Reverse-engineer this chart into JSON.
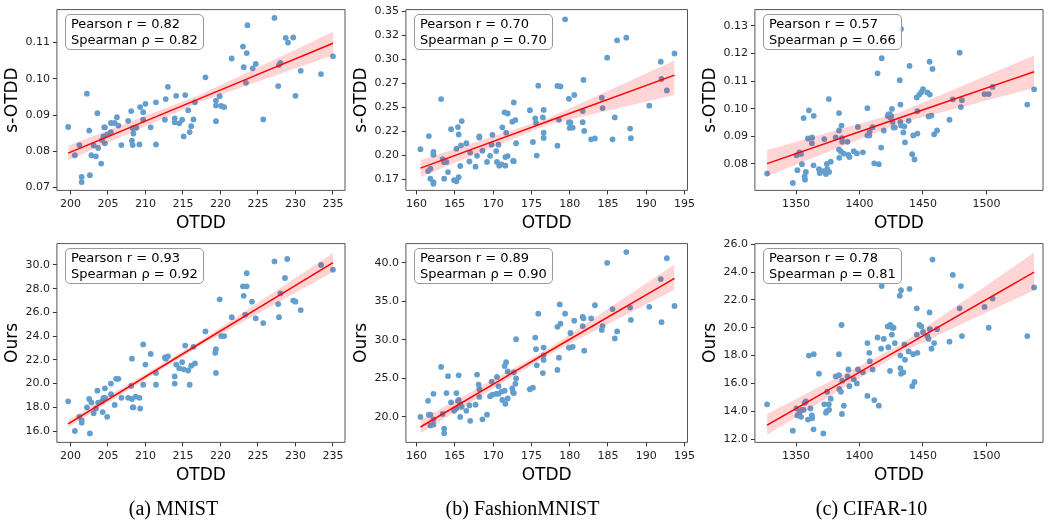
{
  "chart_data": [
    {
      "type": "scatter",
      "xlabel": "OTDD",
      "ylabel": "s-OTDD",
      "annotations": [
        "Pearson r = 0.82",
        "Spearman ρ = 0.82"
      ],
      "xlim": [
        198.2,
        236.6
      ],
      "xticks": [
        200,
        205,
        210,
        215,
        220,
        225,
        230,
        235
      ],
      "ylim": [
        0.0692,
        0.1191
      ],
      "yticks": [
        {
          "value": 0.07,
          "label": "0.07"
        },
        {
          "value": 0.08,
          "label": "0.08"
        },
        {
          "value": 0.09,
          "label": "0.09"
        },
        {
          "value": 0.1,
          "label": "0.10"
        },
        {
          "value": 0.11,
          "label": "0.11"
        }
      ],
      "series": [
        {
          "color": "#629fcf",
          "marker": "circle",
          "x": [
            199.7,
            200.6,
            201.2,
            201.5,
            201.5,
            202.2,
            202.5,
            202.6,
            202.8,
            203.1,
            203.4,
            203.6,
            203.7,
            204.1,
            204.2,
            204.4,
            204.5,
            204.6,
            204.6,
            204.9,
            205.4,
            205.4,
            205.9,
            206.2,
            206.4,
            206.8,
            207.7,
            208.1,
            208.2,
            208.3,
            208.3,
            208.4,
            208.7,
            208.8,
            209.2,
            209.3,
            209.7,
            209.7,
            210.0,
            210.7,
            211.4,
            211.4,
            212.6,
            212.7,
            213.0,
            213.9,
            213.9,
            214.1,
            214.5,
            214.9,
            215.1,
            215.3,
            215.7,
            215.9,
            216.1,
            216.4,
            216.6,
            218.0,
            219.4,
            219.4,
            219.4,
            219.9,
            220.1,
            220.5,
            221.5,
            223.0,
            223.1,
            223.4,
            223.5,
            223.6,
            224.3,
            224.7,
            225.7,
            227.2,
            227.7,
            227.8,
            228.0,
            228.7,
            229.0,
            229.7,
            230.0,
            230.7,
            233.4,
            235.0
          ],
          "values": [
            0.0867,
            0.0789,
            0.0817,
            0.0729,
            0.0715,
            0.0959,
            0.0857,
            0.0734,
            0.0789,
            0.0816,
            0.0786,
            0.0905,
            0.0809,
            0.0766,
            0.0831,
            0.0841,
            0.0866,
            0.0822,
            0.0866,
            0.0846,
            0.0878,
            0.0853,
            0.0878,
            0.0894,
            0.0871,
            0.0817,
            0.0884,
            0.0911,
            0.0829,
            0.0817,
            0.0864,
            0.0849,
            0.0865,
            0.0865,
            0.0819,
            0.0922,
            0.0887,
            0.0908,
            0.0931,
            0.0866,
            0.0819,
            0.0935,
            0.0887,
            0.0944,
            0.0978,
            0.088,
            0.0891,
            0.0953,
            0.0877,
            0.0887,
            0.0841,
            0.0955,
            0.0913,
            0.0853,
            0.0869,
            0.0888,
            0.0935,
            0.1004,
            0.094,
            0.0926,
            0.0883,
            0.0952,
            0.0925,
            0.0922,
            0.1056,
            0.1089,
            0.1032,
            0.0989,
            0.1071,
            0.1148,
            0.1029,
            0.1041,
            0.0888,
            0.1168,
            0.098,
            0.1038,
            0.1044,
            0.1113,
            0.11,
            0.1114,
            0.0953,
            0.1022,
            0.1013,
            0.1062
          ]
        },
        {
          "type": "line",
          "color": "#ff0000",
          "marker": "none",
          "line_style": "solid",
          "x": [
            199.7,
            217.3,
            235.0
          ],
          "values": [
            0.0795,
            0.0946,
            0.1098
          ],
          "lower": [
            0.0775,
            0.0936,
            0.1065
          ],
          "upper": [
            0.0815,
            0.0956,
            0.113
          ]
        }
      ]
    },
    {
      "type": "scatter",
      "xlabel": "OTDD",
      "ylabel": "s-OTDD",
      "annotations": [
        "Pearson r = 0.70",
        "Spearman ρ = 0.70"
      ],
      "xlim": [
        158.6,
        195.4
      ],
      "xticks": [
        160,
        165,
        170,
        175,
        180,
        185,
        190,
        195
      ],
      "ylim": [
        0.1637,
        0.352
      ],
      "yticks": [
        {
          "value": 0.175,
          "label": "0.17"
        },
        {
          "value": 0.2,
          "label": "0.20"
        },
        {
          "value": 0.225,
          "label": "0.22"
        },
        {
          "value": 0.25,
          "label": "0.25"
        },
        {
          "value": 0.275,
          "label": "0.27"
        },
        {
          "value": 0.3,
          "label": "0.30"
        },
        {
          "value": 0.325,
          "label": "0.32"
        },
        {
          "value": 0.35,
          "label": "0.35"
        }
      ],
      "series": [
        {
          "color": "#629fcf",
          "marker": "circle",
          "x": [
            160.5,
            161.5,
            161.6,
            161.8,
            161.8,
            162.2,
            162.2,
            162.2,
            162.2,
            163.2,
            163.4,
            163.6,
            163.6,
            163.9,
            164.1,
            164.5,
            164.9,
            165.2,
            165.2,
            165.4,
            165.5,
            165.5,
            165.7,
            165.8,
            165.9,
            166.5,
            167.0,
            166.9,
            167.7,
            167.9,
            168.2,
            168.2,
            168.6,
            169.2,
            169.6,
            169.8,
            169.9,
            170.4,
            170.5,
            170.7,
            170.8,
            171.1,
            171.2,
            171.5,
            171.6,
            171.6,
            171.7,
            171.9,
            171.9,
            172.5,
            172.6,
            172.7,
            172.7,
            172.9,
            173.0,
            174.8,
            175.2,
            175.5,
            175.6,
            175.7,
            175.9,
            176.5,
            176.6,
            176.6,
            176.6,
            178.4,
            178.4,
            178.6,
            178.8,
            179.4,
            179.9,
            179.9,
            180.1,
            180.0,
            180.4,
            180.6,
            181.7,
            181.7,
            181.8,
            181.9,
            182.8,
            183.3,
            184.2,
            184.3,
            184.9,
            185.6,
            185.9,
            186.2,
            187.4,
            187.9,
            188.0,
            190.4,
            191.9,
            192.0,
            192.7,
            193.7
          ],
          "values": [
            0.2066,
            0.1838,
            0.2203,
            0.1863,
            0.1759,
            0.2009,
            0.2038,
            0.1722,
            0.1706,
            0.2588,
            0.1963,
            0.1759,
            0.1931,
            0.1934,
            0.1828,
            0.2275,
            0.1744,
            0.1731,
            0.2072,
            0.2297,
            0.2219,
            0.1775,
            0.1891,
            0.2106,
            0.2359,
            0.2128,
            0.2031,
            0.1938,
            0.1884,
            0.1997,
            0.22,
            0.2188,
            0.205,
            0.1934,
            0.1997,
            0.2113,
            0.2216,
            0.2047,
            0.1934,
            0.2113,
            0.1894,
            0.1909,
            0.2294,
            0.245,
            0.1894,
            0.1984,
            0.2238,
            0.2438,
            0.1994,
            0.2353,
            0.1944,
            0.1941,
            0.2553,
            0.2369,
            0.2128,
            0.2472,
            0.2141,
            0.2388,
            0.2341,
            0.2,
            0.2728,
            0.2397,
            0.2238,
            0.2184,
            0.2475,
            0.2103,
            0.2725,
            0.2372,
            0.2719,
            0.3419,
            0.2591,
            0.2344,
            0.2344,
            0.2288,
            0.2291,
            0.2631,
            0.2463,
            0.2347,
            0.2788,
            0.2256,
            0.2169,
            0.2178,
            0.2603,
            0.2494,
            0.3019,
            0.2169,
            0.2397,
            0.32,
            0.3228,
            0.2281,
            0.2181,
            0.2519,
            0.2978,
            0.2797,
            0.2678,
            0.3063
          ]
        },
        {
          "type": "line",
          "color": "#ff0000",
          "marker": "none",
          "line_style": "solid",
          "x": [
            160.5,
            177.1,
            193.7
          ],
          "values": [
            0.1869,
            0.2354,
            0.2838
          ],
          "lower": [
            0.1775,
            0.2322,
            0.263
          ],
          "upper": [
            0.195,
            0.2386,
            0.299
          ]
        }
      ]
    },
    {
      "type": "scatter",
      "xlabel": "OTDD",
      "ylabel": "s-OTDD",
      "annotations": [
        "Pearson r = 0.57",
        "Spearman ρ = 0.66"
      ],
      "xlim": [
        1317.5,
        1544.6
      ],
      "xticks": [
        1350,
        1400,
        1450,
        1500
      ],
      "ylim": [
        0.0704,
        0.1359
      ],
      "yticks": [
        {
          "value": 0.08,
          "label": "0.08"
        },
        {
          "value": 0.09,
          "label": "0.09"
        },
        {
          "value": 0.1,
          "label": "0.10"
        },
        {
          "value": 0.11,
          "label": "0.11"
        },
        {
          "value": 0.12,
          "label": "0.12"
        },
        {
          "value": 0.13,
          "label": "0.13"
        }
      ],
      "series": [
        {
          "color": "#629fcf",
          "marker": "circle",
          "x": [
            1327.1,
            1347.4,
            1350.3,
            1351.0,
            1352.6,
            1353.9,
            1354.6,
            1355.9,
            1356.7,
            1357.0,
            1357.7,
            1359.3,
            1360.1,
            1362.4,
            1362.6,
            1363.7,
            1363.9,
            1368.0,
            1368.6,
            1372.2,
            1371.4,
            1373.5,
            1374.2,
            1374.5,
            1375.8,
            1376.0,
            1377.3,
            1381.2,
            1383.8,
            1383.8,
            1383.8,
            1384.0,
            1385.3,
            1385.8,
            1386.1,
            1386.3,
            1387.6,
            1390.5,
            1391.2,
            1392.0,
            1395.4,
            1397.9,
            1398.7,
            1402.6,
            1406.2,
            1406.2,
            1407.7,
            1408.0,
            1410.3,
            1411.6,
            1414.2,
            1415.2,
            1417.0,
            1417.5,
            1419.1,
            1422.2,
            1422.7,
            1424.0,
            1424.2,
            1425.0,
            1425.5,
            1426.0,
            1426.8,
            1427.8,
            1431.7,
            1432.2,
            1432.2,
            1432.7,
            1432.7,
            1434.5,
            1435.3,
            1435.8,
            1438.7,
            1439.4,
            1441.5,
            1442.3,
            1443.3,
            1445.1,
            1445.6,
            1445.6,
            1447.2,
            1448.7,
            1450.0,
            1453.4,
            1454.4,
            1455.2,
            1455.4,
            1456.7,
            1457.5,
            1458.8,
            1461.1,
            1470.9,
            1473.5,
            1478.9,
            1479.9,
            1480.7,
            1498.5,
            1501.8,
            1504.9,
            1532.2,
            1537.6
          ],
          "values": [
            0.0765,
            0.0731,
            0.0831,
            0.0777,
            0.0842,
            0.0836,
            0.0799,
            0.0966,
            0.0755,
            0.0743,
            0.0771,
            0.0892,
            0.0994,
            0.0875,
            0.0896,
            0.0795,
            0.0974,
            0.0781,
            0.0767,
            0.089,
            0.0774,
            0.0763,
            0.08,
            0.0781,
            0.1035,
            0.0771,
            0.0808,
            0.0896,
            0.0852,
            0.0921,
            0.0984,
            0.0822,
            0.0845,
            0.0939,
            0.0893,
            0.088,
            0.0837,
            0.088,
            0.0833,
            0.0825,
            0.0846,
            0.0838,
            0.0934,
            0.0842,
            0.1002,
            0.0903,
            0.0903,
            0.0917,
            0.0933,
            0.0802,
            0.1128,
            0.0799,
            0.0859,
            0.1183,
            0.0921,
            0.0974,
            0.0979,
            0.0979,
            0.0968,
            0.0972,
            0.0999,
            0.0952,
            0.0932,
            0.0932,
            0.1103,
            0.1015,
            0.0952,
            0.0939,
            0.1289,
            0.0914,
            0.0936,
            0.0878,
            0.0956,
            0.1155,
            0.0835,
            0.0903,
            0.0816,
            0.1041,
            0.0991,
            0.091,
            0.1051,
            0.106,
            0.1071,
            0.1059,
            0.0972,
            0.117,
            0.1051,
            0.0975,
            0.1144,
            0.0907,
            0.0921,
            0.096,
            0.1034,
            0.1203,
            0.1006,
            0.1031,
            0.1053,
            0.1053,
            0.1079,
            0.1015,
            0.107
          ]
        },
        {
          "type": "line",
          "color": "#ff0000",
          "marker": "none",
          "line_style": "solid",
          "x": [
            1327.1,
            1432.4,
            1537.6
          ],
          "values": [
            0.0801,
            0.0968,
            0.1134
          ],
          "lower": [
            0.0755,
            0.0948,
            0.1075
          ],
          "upper": [
            0.085,
            0.0988,
            0.1193
          ]
        }
      ]
    },
    {
      "type": "scatter",
      "title": "(a) MNIST",
      "xlabel": "OTDD",
      "ylabel": "Ours",
      "annotations": [
        "Pearson r = 0.93",
        "Spearman ρ = 0.92"
      ],
      "xlim": [
        198.2,
        236.6
      ],
      "xticks": [
        200,
        205,
        210,
        215,
        220,
        225,
        230,
        235
      ],
      "ylim": [
        15.04,
        31.8
      ],
      "yticks": [
        {
          "value": 16,
          "label": "16.0"
        },
        {
          "value": 18,
          "label": "18.0"
        },
        {
          "value": 20,
          "label": "20.0"
        },
        {
          "value": 22,
          "label": "22.0"
        },
        {
          "value": 24,
          "label": "24.0"
        },
        {
          "value": 26,
          "label": "26.0"
        },
        {
          "value": 28,
          "label": "28.0"
        },
        {
          "value": 30,
          "label": "30.0"
        }
      ],
      "series": [
        {
          "color": "#629fcf",
          "marker": "circle",
          "x": [
            199.7,
            200.6,
            201.2,
            201.5,
            201.5,
            202.2,
            202.5,
            202.6,
            202.8,
            203.1,
            203.4,
            203.6,
            203.7,
            204.2,
            204.3,
            204.4,
            204.6,
            204.6,
            204.9,
            205.4,
            205.4,
            205.9,
            206.1,
            206.4,
            206.8,
            207.7,
            208.1,
            208.2,
            208.2,
            208.3,
            208.4,
            208.7,
            209.2,
            209.3,
            209.7,
            209.7,
            210.0,
            210.7,
            211.4,
            211.4,
            212.6,
            212.7,
            213.0,
            213.9,
            213.9,
            214.1,
            214.5,
            214.9,
            215.1,
            215.3,
            215.7,
            215.9,
            216.1,
            216.4,
            216.6,
            218.0,
            219.3,
            219.4,
            219.4,
            219.9,
            220.1,
            220.5,
            221.5,
            223.0,
            223.1,
            223.3,
            223.5,
            223.5,
            224.2,
            224.7,
            225.7,
            227.2,
            227.7,
            227.8,
            228.0,
            228.6,
            228.9,
            229.7,
            230.0,
            230.7,
            233.4,
            235.0
          ],
          "values": [
            18.5,
            16.0,
            17.2,
            16.9,
            16.7,
            18.0,
            18.7,
            15.8,
            18.4,
            17.5,
            17.9,
            19.4,
            18.4,
            18.5,
            17.6,
            18.8,
            19.6,
            18.8,
            17.2,
            20.0,
            19.1,
            18.2,
            20.4,
            20.4,
            18.8,
            18.8,
            19.8,
            22.1,
            18.7,
            18.0,
            18.0,
            18.9,
            18.8,
            17.9,
            23.3,
            19.9,
            21.6,
            22.5,
            19.9,
            20.9,
            22.2,
            22.1,
            22.3,
            20.6,
            20.0,
            21.6,
            21.3,
            21.8,
            21.2,
            23.2,
            21.1,
            19.9,
            21.5,
            23.1,
            21.7,
            24.4,
            22.6,
            22.9,
            20.9,
            27.1,
            24.0,
            24.0,
            25.6,
            28.2,
            27.4,
            25.8,
            28.2,
            29.3,
            26.9,
            25.5,
            25.1,
            30.3,
            26.7,
            25.6,
            27.6,
            28.9,
            30.5,
            27.0,
            26.9,
            26.2,
            30.0,
            29.6
          ]
        },
        {
          "type": "line",
          "color": "#ff0000",
          "marker": "none",
          "line_style": "solid",
          "x": [
            199.7,
            217.3,
            235.0
          ],
          "values": [
            16.6,
            23.4,
            30.2
          ],
          "lower": [
            16.3,
            23.2,
            29.4
          ],
          "upper": [
            16.9,
            23.6,
            31.0
          ]
        }
      ]
    },
    {
      "type": "scatter",
      "title": "(b) FashionMNIST",
      "xlabel": "OTDD",
      "ylabel": "Ours",
      "annotations": [
        "Pearson r = 0.89",
        "Spearman ρ = 0.90"
      ],
      "xlim": [
        158.6,
        195.4
      ],
      "xticks": [
        160,
        165,
        170,
        175,
        180,
        185,
        190,
        195
      ],
      "ylim": [
        16.7,
        42.5
      ],
      "yticks": [
        {
          "value": 20,
          "label": "20.0"
        },
        {
          "value": 25,
          "label": "25.0"
        },
        {
          "value": 30,
          "label": "30.0"
        },
        {
          "value": 35,
          "label": "35.0"
        },
        {
          "value": 40,
          "label": "40.0"
        }
      ],
      "series": [
        {
          "color": "#629fcf",
          "marker": "circle",
          "x": [
            160.5,
            161.5,
            161.6,
            161.8,
            161.8,
            162.2,
            162.2,
            162.2,
            163.2,
            163.4,
            163.6,
            163.6,
            163.9,
            164.1,
            164.5,
            164.9,
            165.2,
            165.2,
            165.4,
            165.5,
            165.5,
            165.7,
            165.7,
            165.9,
            166.5,
            166.9,
            167.0,
            167.7,
            167.9,
            168.1,
            168.2,
            168.2,
            168.6,
            169.2,
            169.6,
            169.8,
            169.9,
            170.4,
            170.5,
            170.7,
            170.7,
            171.1,
            171.2,
            171.5,
            171.5,
            171.6,
            171.7,
            171.9,
            171.9,
            172.5,
            172.6,
            172.7,
            172.7,
            172.9,
            173.0,
            173.0,
            174.8,
            175.2,
            175.5,
            175.6,
            175.7,
            175.9,
            176.5,
            176.6,
            176.6,
            176.6,
            178.4,
            178.4,
            178.6,
            178.7,
            178.8,
            179.4,
            179.9,
            180.1,
            180.0,
            180.4,
            180.6,
            181.7,
            181.7,
            181.8,
            181.9,
            182.8,
            183.3,
            184.2,
            184.3,
            184.9,
            185.6,
            185.9,
            186.2,
            187.4,
            187.9,
            188.0,
            190.4,
            191.9,
            192.0,
            192.7,
            193.7
          ],
          "values": [
            20.0,
            22.1,
            20.3,
            20.3,
            18.9,
            23.0,
            19.7,
            19.0,
            26.5,
            20.4,
            18.5,
            17.9,
            23.1,
            25.3,
            21.9,
            20.8,
            21.1,
            23.1,
            22.1,
            25.4,
            22.2,
            21.7,
            20.0,
            21.3,
            20.8,
            21.5,
            19.5,
            21.6,
            25.5,
            24.2,
            23.6,
            22.6,
            19.7,
            20.3,
            22.7,
            24.6,
            22.9,
            23.0,
            25.2,
            23.0,
            24.0,
            23.3,
            22.2,
            26.6,
            23.4,
            21.7,
            27.1,
            22.4,
            25.9,
            23.7,
            23.2,
            23.1,
            25.8,
            24.3,
            25.0,
            30.1,
            23.6,
            23.8,
            30.3,
            28.8,
            26.7,
            33.4,
            25.7,
            29.0,
            27.4,
            28.0,
            26.1,
            31.7,
            27.7,
            34.6,
            32.1,
            33.4,
            29.0,
            30.9,
            29.0,
            29.1,
            32.5,
            31.8,
            33.0,
            32.8,
            28.6,
            32.8,
            34.5,
            31.3,
            31.8,
            40.0,
            34.0,
            30.2,
            31.1,
            41.4,
            34.2,
            32.6,
            34.3,
            37.9,
            32.3,
            40.6,
            34.4
          ]
        },
        {
          "type": "line",
          "color": "#ff0000",
          "marker": "none",
          "line_style": "solid",
          "x": [
            160.5,
            177.1,
            193.7
          ],
          "values": [
            18.7,
            28.4,
            38.0
          ],
          "lower": [
            17.9,
            28.0,
            36.5
          ],
          "upper": [
            19.6,
            28.8,
            39.8
          ]
        }
      ]
    },
    {
      "type": "scatter",
      "title": "(c) CIFAR-10",
      "xlabel": "OTDD",
      "ylabel": "Ours",
      "annotations": [
        "Pearson r = 0.78",
        "Spearman ρ = 0.81"
      ],
      "xlim": [
        1317.5,
        1544.6
      ],
      "xticks": [
        1350,
        1400,
        1450,
        1500
      ],
      "ylim": [
        11.76,
        26.05
      ],
      "yticks": [
        {
          "value": 12,
          "label": "12.0"
        },
        {
          "value": 14,
          "label": "14.0"
        },
        {
          "value": 16,
          "label": "16.0"
        },
        {
          "value": 18,
          "label": "18.0"
        },
        {
          "value": 20,
          "label": "20.0"
        },
        {
          "value": 22,
          "label": "22.0"
        },
        {
          "value": 24,
          "label": "24.0"
        },
        {
          "value": 26,
          "label": "26.0"
        }
      ],
      "series": [
        {
          "color": "#629fcf",
          "marker": "circle",
          "x": [
            1327.1,
            1347.4,
            1350.3,
            1351.0,
            1352.6,
            1353.9,
            1354.6,
            1355.9,
            1356.7,
            1357.7,
            1359.3,
            1360.1,
            1361.3,
            1362.4,
            1362.6,
            1363.7,
            1363.9,
            1368.0,
            1371.4,
            1372.2,
            1373.5,
            1374.2,
            1374.5,
            1375.8,
            1376.0,
            1377.3,
            1381.2,
            1383.8,
            1383.8,
            1384.0,
            1385.3,
            1385.8,
            1386.1,
            1386.3,
            1387.6,
            1390.5,
            1391.2,
            1392.0,
            1395.4,
            1397.9,
            1398.7,
            1402.6,
            1406.2,
            1406.2,
            1407.7,
            1408.0,
            1410.3,
            1411.6,
            1414.2,
            1415.2,
            1417.0,
            1417.5,
            1419.1,
            1422.2,
            1422.7,
            1424.0,
            1424.2,
            1425.0,
            1425.5,
            1426.0,
            1426.8,
            1427.8,
            1431.7,
            1432.2,
            1432.2,
            1432.7,
            1432.7,
            1434.5,
            1435.3,
            1435.8,
            1438.7,
            1439.4,
            1441.5,
            1442.3,
            1443.3,
            1445.1,
            1445.1,
            1445.6,
            1447.2,
            1448.7,
            1450.0,
            1453.4,
            1454.4,
            1455.2,
            1455.4,
            1456.7,
            1457.5,
            1458.8,
            1461.1,
            1470.9,
            1473.5,
            1478.9,
            1479.9,
            1480.7,
            1498.5,
            1501.8,
            1504.9,
            1532.2,
            1537.6
          ],
          "values": [
            14.5,
            12.6,
            14.2,
            13.7,
            13.9,
            13.6,
            14.1,
            14.1,
            14.6,
            14.7,
            13.4,
            18.0,
            14.2,
            13.7,
            13.5,
            12.7,
            18.1,
            16.7,
            12.4,
            14.5,
            13.9,
            14.0,
            15.4,
            14.5,
            14.1,
            14.9,
            16.5,
            18.1,
            16.6,
            15.6,
            15.4,
            20.2,
            13.8,
            16.2,
            14.4,
            16.5,
            17.0,
            15.8,
            16.3,
            16.0,
            17.0,
            16.8,
            18.9,
            15.1,
            18.2,
            17.6,
            17.0,
            14.8,
            19.3,
            14.4,
            18.5,
            23.0,
            19.2,
            20.1,
            18.6,
            16.9,
            20.2,
            20.1,
            19.5,
            20.0,
            20.0,
            18.9,
            22.3,
            18.0,
            17.1,
            22.7,
            16.7,
            16.8,
            18.8,
            17.7,
            18.3,
            22.8,
            15.8,
            18.1,
            16.1,
            21.4,
            19.5,
            18.2,
            20.2,
            20.1,
            19.7,
            19.4,
            19.2,
            21.1,
            19.9,
            18.5,
            24.9,
            18.9,
            19.9,
            19.0,
            23.8,
            21.4,
            23.0,
            19.4,
            21.5,
            20.0,
            22.1,
            19.4,
            22.9
          ]
        },
        {
          "type": "line",
          "color": "#ff0000",
          "marker": "none",
          "line_style": "solid",
          "x": [
            1327.1,
            1432.4,
            1537.6
          ],
          "values": [
            13.0,
            18.5,
            24.0
          ],
          "lower": [
            12.3,
            18.2,
            22.7
          ],
          "upper": [
            13.8,
            18.8,
            25.4
          ]
        }
      ]
    }
  ]
}
